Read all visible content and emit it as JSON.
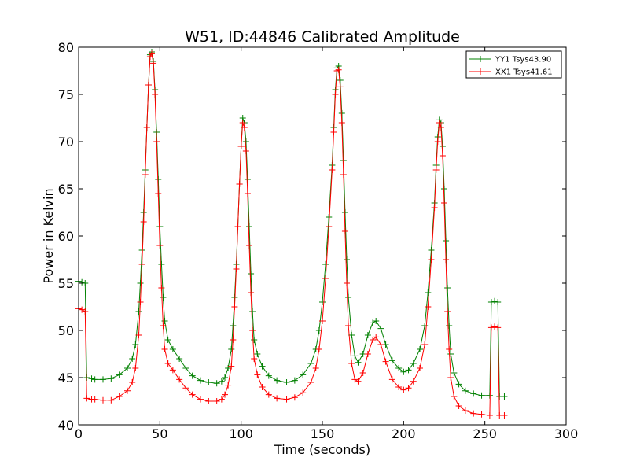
{
  "chart_data": {
    "type": "line",
    "title": "W51, ID:44846 Calibrated Amplitude",
    "xlabel": "Time (seconds)",
    "ylabel": "Power in Kelvin",
    "xlim": [
      0,
      300
    ],
    "ylim": [
      40,
      80
    ],
    "xticks": [
      0,
      50,
      100,
      150,
      200,
      250,
      300
    ],
    "yticks": [
      40,
      45,
      50,
      55,
      60,
      65,
      70,
      75,
      80
    ],
    "grid": false,
    "legend_position": "top-right",
    "marker": "+",
    "series": [
      {
        "name": "YY1 Tsys43.90",
        "color": "#008000",
        "points": [
          [
            0,
            55.2
          ],
          [
            2,
            55.1
          ],
          [
            4,
            55.0
          ],
          [
            5,
            45.0
          ],
          [
            8,
            44.9
          ],
          [
            10,
            44.8
          ],
          [
            15,
            44.8
          ],
          [
            20,
            44.9
          ],
          [
            25,
            45.3
          ],
          [
            30,
            46.0
          ],
          [
            33,
            47.0
          ],
          [
            35,
            48.5
          ],
          [
            37,
            52.0
          ],
          [
            38,
            55.0
          ],
          [
            39,
            58.5
          ],
          [
            40,
            62.5
          ],
          [
            41,
            67.0
          ],
          [
            42,
            71.5
          ],
          [
            43,
            76.0
          ],
          [
            44,
            79.2
          ],
          [
            45,
            79.5
          ],
          [
            46,
            78.5
          ],
          [
            47,
            75.5
          ],
          [
            48,
            71.0
          ],
          [
            49,
            66.0
          ],
          [
            50,
            61.0
          ],
          [
            51,
            57.0
          ],
          [
            52,
            53.5
          ],
          [
            53,
            51.0
          ],
          [
            55,
            49.0
          ],
          [
            58,
            48.0
          ],
          [
            62,
            47.0
          ],
          [
            66,
            46.0
          ],
          [
            70,
            45.2
          ],
          [
            75,
            44.7
          ],
          [
            80,
            44.5
          ],
          [
            85,
            44.4
          ],
          [
            88,
            44.6
          ],
          [
            90,
            45.0
          ],
          [
            92,
            46.0
          ],
          [
            94,
            48.0
          ],
          [
            95,
            50.5
          ],
          [
            96,
            53.5
          ],
          [
            97,
            57.0
          ],
          [
            98,
            61.0
          ],
          [
            99,
            65.5
          ],
          [
            100,
            69.5
          ],
          [
            101,
            72.5
          ],
          [
            102,
            72.0
          ],
          [
            103,
            70.0
          ],
          [
            104,
            66.0
          ],
          [
            105,
            61.0
          ],
          [
            106,
            56.0
          ],
          [
            107,
            52.0
          ],
          [
            108,
            49.0
          ],
          [
            110,
            47.5
          ],
          [
            113,
            46.2
          ],
          [
            117,
            45.2
          ],
          [
            122,
            44.7
          ],
          [
            128,
            44.5
          ],
          [
            133,
            44.7
          ],
          [
            138,
            45.3
          ],
          [
            143,
            46.5
          ],
          [
            146,
            48.0
          ],
          [
            148,
            50.0
          ],
          [
            150,
            53.0
          ],
          [
            152,
            57.0
          ],
          [
            154,
            62.0
          ],
          [
            156,
            67.5
          ],
          [
            157,
            71.5
          ],
          [
            158,
            75.5
          ],
          [
            159,
            77.8
          ],
          [
            160,
            78.0
          ],
          [
            161,
            76.5
          ],
          [
            162,
            73.0
          ],
          [
            163,
            68.0
          ],
          [
            164,
            62.5
          ],
          [
            165,
            57.5
          ],
          [
            166,
            53.5
          ],
          [
            168,
            49.5
          ],
          [
            170,
            47.3
          ],
          [
            172,
            46.6
          ],
          [
            175,
            47.5
          ],
          [
            178,
            49.5
          ],
          [
            181,
            50.8
          ],
          [
            183,
            51.0
          ],
          [
            186,
            50.2
          ],
          [
            189,
            48.5
          ],
          [
            193,
            46.8
          ],
          [
            197,
            46.0
          ],
          [
            200,
            45.6
          ],
          [
            203,
            45.8
          ],
          [
            206,
            46.5
          ],
          [
            210,
            48.0
          ],
          [
            213,
            50.5
          ],
          [
            215,
            54.0
          ],
          [
            217,
            58.5
          ],
          [
            219,
            63.5
          ],
          [
            220,
            67.5
          ],
          [
            221,
            70.5
          ],
          [
            222,
            72.3
          ],
          [
            223,
            72.0
          ],
          [
            224,
            69.5
          ],
          [
            225,
            65.0
          ],
          [
            226,
            59.5
          ],
          [
            227,
            54.5
          ],
          [
            228,
            50.5
          ],
          [
            229,
            47.5
          ],
          [
            231,
            45.5
          ],
          [
            234,
            44.3
          ],
          [
            238,
            43.6
          ],
          [
            243,
            43.3
          ],
          [
            248,
            43.1
          ],
          [
            253,
            43.1
          ],
          [
            254,
            53.0
          ],
          [
            256,
            53.1
          ],
          [
            258,
            53.0
          ],
          [
            259,
            43.0
          ],
          [
            262,
            43.0
          ]
        ]
      },
      {
        "name": "XX1 Tsys41.61",
        "color": "#ff0000",
        "points": [
          [
            0,
            52.3
          ],
          [
            2,
            52.2
          ],
          [
            4,
            52.0
          ],
          [
            5,
            42.8
          ],
          [
            8,
            42.7
          ],
          [
            10,
            42.7
          ],
          [
            15,
            42.6
          ],
          [
            20,
            42.6
          ],
          [
            25,
            43.0
          ],
          [
            30,
            43.6
          ],
          [
            33,
            44.5
          ],
          [
            35,
            46.0
          ],
          [
            37,
            49.5
          ],
          [
            38,
            53.0
          ],
          [
            39,
            57.0
          ],
          [
            40,
            61.5
          ],
          [
            41,
            66.5
          ],
          [
            42,
            71.5
          ],
          [
            43,
            76.0
          ],
          [
            44,
            79.0
          ],
          [
            45,
            79.3
          ],
          [
            46,
            78.3
          ],
          [
            47,
            75.0
          ],
          [
            48,
            70.0
          ],
          [
            49,
            64.5
          ],
          [
            50,
            59.0
          ],
          [
            51,
            54.5
          ],
          [
            52,
            50.5
          ],
          [
            53,
            48.0
          ],
          [
            55,
            46.5
          ],
          [
            58,
            45.8
          ],
          [
            62,
            44.8
          ],
          [
            66,
            43.9
          ],
          [
            70,
            43.2
          ],
          [
            75,
            42.7
          ],
          [
            80,
            42.5
          ],
          [
            85,
            42.5
          ],
          [
            88,
            42.7
          ],
          [
            90,
            43.2
          ],
          [
            92,
            44.2
          ],
          [
            94,
            46.2
          ],
          [
            95,
            49.0
          ],
          [
            96,
            52.5
          ],
          [
            97,
            56.5
          ],
          [
            98,
            61.0
          ],
          [
            99,
            65.5
          ],
          [
            100,
            69.5
          ],
          [
            101,
            72.0
          ],
          [
            102,
            71.5
          ],
          [
            103,
            69.0
          ],
          [
            104,
            64.5
          ],
          [
            105,
            59.0
          ],
          [
            106,
            54.0
          ],
          [
            107,
            50.0
          ],
          [
            108,
            47.0
          ],
          [
            110,
            45.3
          ],
          [
            113,
            44.0
          ],
          [
            117,
            43.2
          ],
          [
            122,
            42.8
          ],
          [
            128,
            42.7
          ],
          [
            133,
            42.9
          ],
          [
            138,
            43.4
          ],
          [
            143,
            44.5
          ],
          [
            146,
            46.0
          ],
          [
            148,
            48.0
          ],
          [
            150,
            51.0
          ],
          [
            152,
            55.5
          ],
          [
            154,
            61.0
          ],
          [
            156,
            67.0
          ],
          [
            157,
            71.0
          ],
          [
            158,
            75.0
          ],
          [
            159,
            77.5
          ],
          [
            160,
            77.6
          ],
          [
            161,
            75.8
          ],
          [
            162,
            72.0
          ],
          [
            163,
            66.5
          ],
          [
            164,
            60.5
          ],
          [
            165,
            55.0
          ],
          [
            166,
            50.5
          ],
          [
            168,
            46.5
          ],
          [
            170,
            44.8
          ],
          [
            172,
            44.6
          ],
          [
            175,
            45.5
          ],
          [
            178,
            47.5
          ],
          [
            181,
            49.0
          ],
          [
            183,
            49.3
          ],
          [
            186,
            48.5
          ],
          [
            189,
            46.7
          ],
          [
            193,
            44.8
          ],
          [
            197,
            44.0
          ],
          [
            200,
            43.7
          ],
          [
            203,
            43.9
          ],
          [
            206,
            44.6
          ],
          [
            210,
            46.0
          ],
          [
            213,
            48.5
          ],
          [
            215,
            52.5
          ],
          [
            217,
            57.5
          ],
          [
            219,
            63.0
          ],
          [
            220,
            67.0
          ],
          [
            221,
            70.0
          ],
          [
            222,
            72.0
          ],
          [
            223,
            71.5
          ],
          [
            224,
            68.5
          ],
          [
            225,
            63.5
          ],
          [
            226,
            57.5
          ],
          [
            227,
            52.0
          ],
          [
            228,
            48.0
          ],
          [
            229,
            45.0
          ],
          [
            231,
            43.0
          ],
          [
            234,
            42.0
          ],
          [
            238,
            41.5
          ],
          [
            243,
            41.2
          ],
          [
            248,
            41.1
          ],
          [
            253,
            41.0
          ],
          [
            254,
            50.3
          ],
          [
            256,
            50.4
          ],
          [
            258,
            50.3
          ],
          [
            259,
            41.0
          ],
          [
            262,
            41.0
          ]
        ]
      }
    ]
  }
}
